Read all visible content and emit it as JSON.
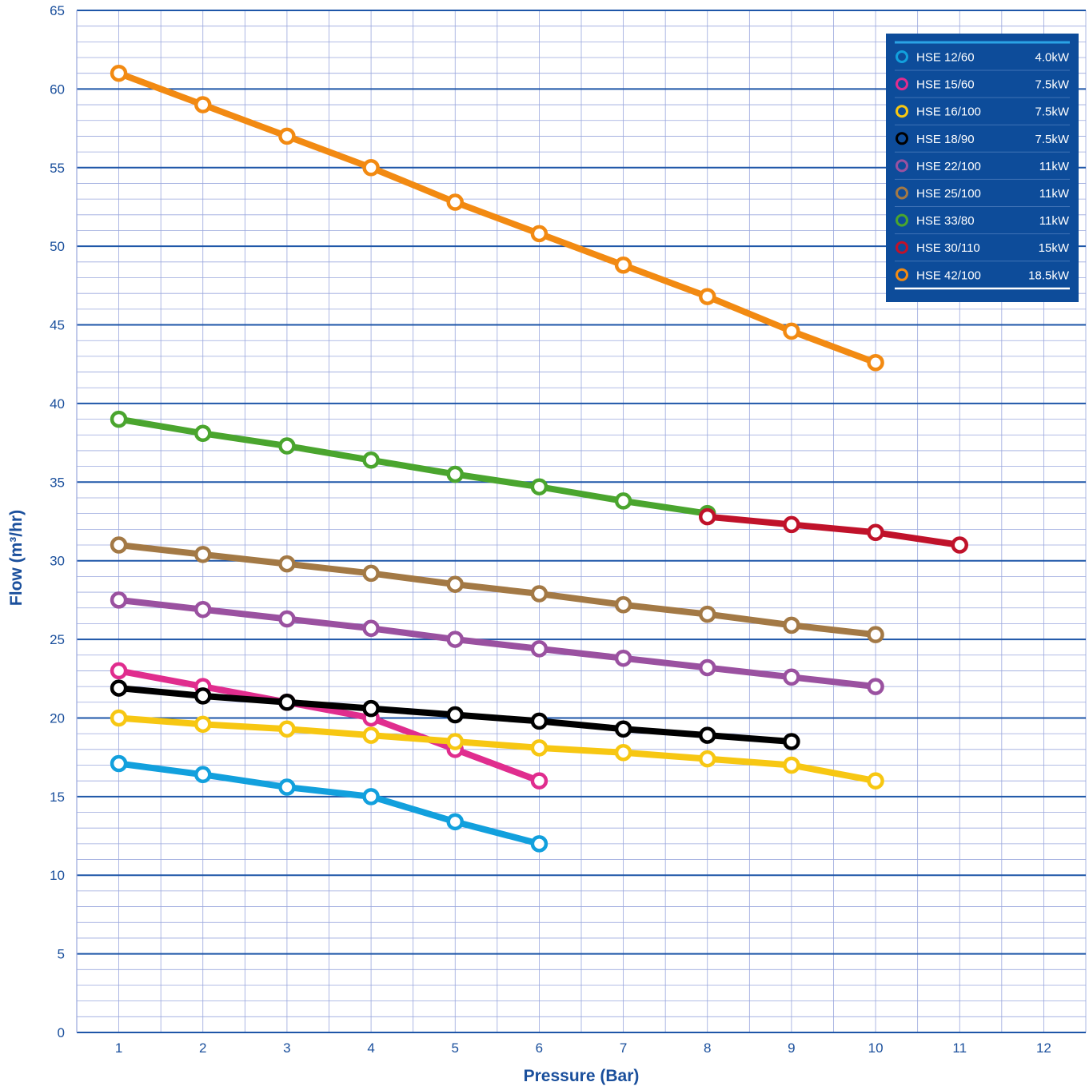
{
  "chart_data": {
    "type": "line",
    "xlabel": "Pressure (Bar)",
    "ylabel": "Flow (m³/hr)",
    "xlim": [
      0.5,
      12.5
    ],
    "ylim": [
      0,
      65
    ],
    "x_ticks": [
      1,
      2,
      3,
      4,
      5,
      6,
      7,
      8,
      9,
      10,
      11,
      12
    ],
    "y_ticks": [
      0,
      5,
      10,
      15,
      20,
      25,
      30,
      35,
      40,
      45,
      50,
      55,
      60,
      65
    ],
    "grid": true,
    "legend_position": "top-right",
    "legend_background": "#0d4c9a",
    "grid_major_color": "#1e56a8",
    "grid_minor_color": "#9aa7dd",
    "series": [
      {
        "name": "HSE 12/60",
        "power": "4.0kW",
        "color": "#12a0dd",
        "x": [
          1,
          2,
          3,
          4,
          5,
          6
        ],
        "y": [
          17.1,
          16.4,
          15.6,
          15.0,
          13.4,
          12.0
        ]
      },
      {
        "name": "HSE 15/60",
        "power": "7.5kW",
        "color": "#e02d8e",
        "x": [
          1,
          2,
          3,
          4,
          5,
          6
        ],
        "y": [
          23.0,
          22.0,
          21.0,
          20.0,
          18.0,
          16.0
        ]
      },
      {
        "name": "HSE 16/100",
        "power": "7.5kW",
        "color": "#f7c712",
        "x": [
          1,
          2,
          3,
          4,
          5,
          6,
          7,
          8,
          9,
          10
        ],
        "y": [
          20.0,
          19.6,
          19.3,
          18.9,
          18.5,
          18.1,
          17.8,
          17.4,
          17.0,
          16.0
        ]
      },
      {
        "name": "HSE 18/90",
        "power": "7.5kW",
        "color": "#000000",
        "x": [
          1,
          2,
          3,
          4,
          5,
          6,
          7,
          8,
          9
        ],
        "y": [
          21.9,
          21.4,
          21.0,
          20.6,
          20.2,
          19.8,
          19.3,
          18.9,
          18.5
        ]
      },
      {
        "name": "HSE 22/100",
        "power": "11kW",
        "color": "#9a51a0",
        "x": [
          1,
          2,
          3,
          4,
          5,
          6,
          7,
          8,
          9,
          10
        ],
        "y": [
          27.5,
          26.9,
          26.3,
          25.7,
          25.0,
          24.4,
          23.8,
          23.2,
          22.6,
          22.0
        ]
      },
      {
        "name": "HSE 25/100",
        "power": "11kW",
        "color": "#a37945",
        "x": [
          1,
          2,
          3,
          4,
          5,
          6,
          7,
          8,
          9,
          10
        ],
        "y": [
          31.0,
          30.4,
          29.8,
          29.2,
          28.5,
          27.9,
          27.2,
          26.6,
          25.9,
          25.3
        ]
      },
      {
        "name": "HSE 33/80",
        "power": "11kW",
        "color": "#4aa52e",
        "x": [
          1,
          2,
          3,
          4,
          5,
          6,
          7,
          8
        ],
        "y": [
          39.0,
          38.1,
          37.3,
          36.4,
          35.5,
          34.7,
          33.8,
          33.0
        ]
      },
      {
        "name": "HSE 30/110",
        "power": "15kW",
        "color": "#c0122a",
        "x": [
          8,
          9,
          10,
          11
        ],
        "y": [
          32.8,
          32.3,
          31.8,
          31.0
        ]
      },
      {
        "name": "HSE 42/100",
        "power": "18.5kW",
        "color": "#f28a12",
        "x": [
          1,
          2,
          3,
          4,
          5,
          6,
          7,
          8,
          9,
          10
        ],
        "y": [
          61.0,
          59.0,
          57.0,
          55.0,
          52.8,
          50.8,
          48.8,
          46.8,
          44.6,
          42.6
        ]
      }
    ]
  }
}
